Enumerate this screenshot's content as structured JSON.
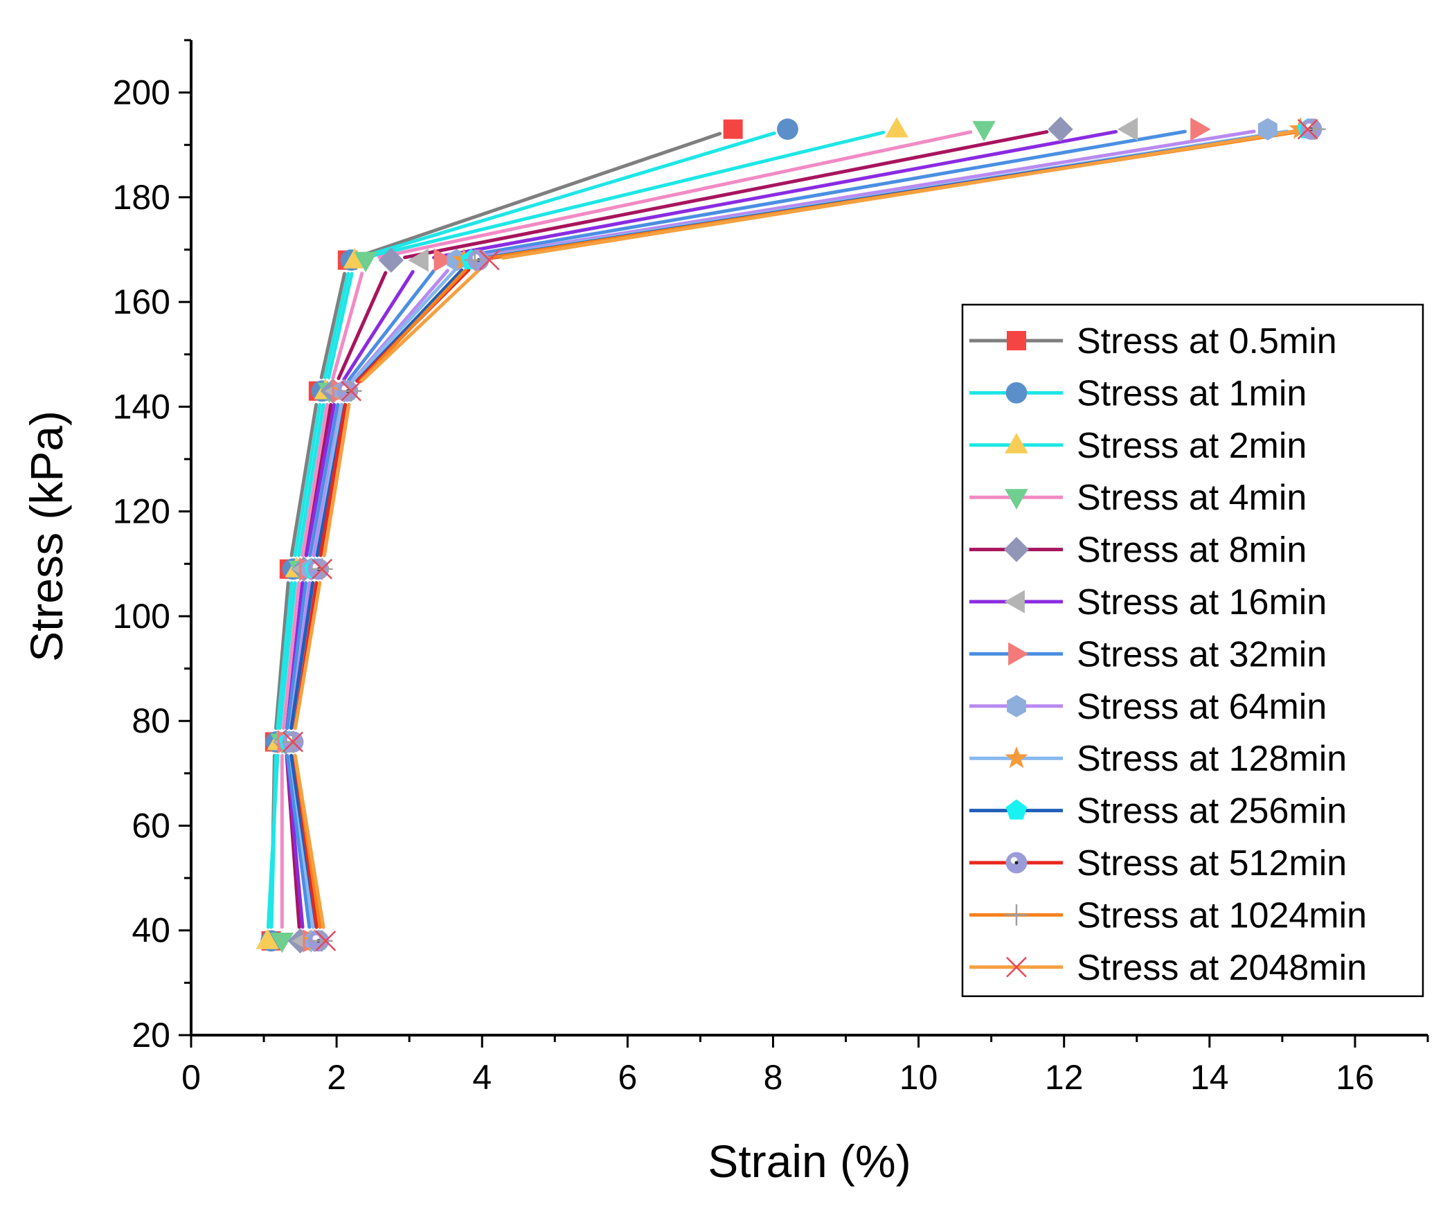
{
  "chart_data": {
    "type": "line",
    "title": "",
    "xlabel": "Strain (%)",
    "ylabel": "Stress (kPa)",
    "xlim": [
      0,
      17
    ],
    "ylim": [
      20,
      210
    ],
    "xticks": [
      0,
      2,
      4,
      6,
      8,
      10,
      12,
      14,
      16
    ],
    "yticks": [
      20,
      40,
      60,
      80,
      100,
      120,
      140,
      160,
      180,
      200
    ],
    "stress_levels": [
      38,
      76,
      109,
      143,
      168,
      193
    ],
    "legend_position": "right",
    "series": [
      {
        "name": "Stress at 0.5min",
        "line_color": "#7f7f7f",
        "marker": "square",
        "marker_color": "#f54542",
        "x": [
          1.1,
          1.15,
          1.35,
          1.75,
          2.15,
          7.45
        ]
      },
      {
        "name": "Stress at 1min",
        "line_color": "#1ee6e6",
        "marker": "circle",
        "marker_color": "#5b8fc9",
        "x": [
          1.1,
          1.17,
          1.4,
          1.8,
          2.2,
          8.2
        ]
      },
      {
        "name": "Stress at 2min",
        "line_color": "#1ee6e6",
        "marker": "triangle-up",
        "marker_color": "#f8cd56",
        "x": [
          1.05,
          1.2,
          1.45,
          1.85,
          2.25,
          9.7
        ]
      },
      {
        "name": "Stress at 4min",
        "line_color": "#f28ac4",
        "marker": "triangle-down",
        "marker_color": "#6fcf8f",
        "x": [
          1.25,
          1.25,
          1.5,
          1.9,
          2.4,
          10.9
        ]
      },
      {
        "name": "Stress at 8min",
        "line_color": "#a8145d",
        "marker": "diamond",
        "marker_color": "#9196b8",
        "x": [
          1.5,
          1.3,
          1.55,
          1.95,
          2.75,
          11.95
        ]
      },
      {
        "name": "Stress at 16min",
        "line_color": "#8a2be2",
        "marker": "triangle-left",
        "marker_color": "#b4b4b4",
        "x": [
          1.55,
          1.3,
          1.55,
          2.0,
          3.15,
          12.9
        ]
      },
      {
        "name": "Stress at 32min",
        "line_color": "#4a8fe2",
        "marker": "triangle-right",
        "marker_color": "#f47a7a",
        "x": [
          1.65,
          1.3,
          1.6,
          2.05,
          3.45,
          13.85
        ]
      },
      {
        "name": "Stress at 64min",
        "line_color": "#b88af0",
        "marker": "hexagon",
        "marker_color": "#8eaedb",
        "x": [
          1.7,
          1.35,
          1.65,
          2.1,
          3.65,
          14.8
        ]
      },
      {
        "name": "Stress at 128min",
        "line_color": "#88b8ee",
        "marker": "star",
        "marker_color": "#f59a3a",
        "x": [
          1.7,
          1.35,
          1.7,
          2.1,
          3.75,
          15.25
        ]
      },
      {
        "name": "Stress at 256min",
        "line_color": "#1f5fb8",
        "marker": "pentagon",
        "marker_color": "#19f2f2",
        "x": [
          1.75,
          1.35,
          1.7,
          2.15,
          3.85,
          15.35
        ]
      },
      {
        "name": "Stress at 512min",
        "line_color": "#e8281e",
        "marker": "sphere",
        "marker_color": "#9b9bd8",
        "x": [
          1.75,
          1.4,
          1.75,
          2.15,
          3.95,
          15.4
        ]
      },
      {
        "name": "Stress at 1024min",
        "line_color": "#f5821f",
        "marker": "plus",
        "marker_color": "#a0a0a0",
        "x": [
          1.8,
          1.4,
          1.8,
          2.2,
          3.9,
          15.45
        ]
      },
      {
        "name": "Stress at 2048min",
        "line_color": "#f5a040",
        "marker": "cross",
        "marker_color": "#e8475a",
        "x": [
          1.85,
          1.4,
          1.8,
          2.2,
          4.1,
          15.35
        ]
      }
    ]
  }
}
